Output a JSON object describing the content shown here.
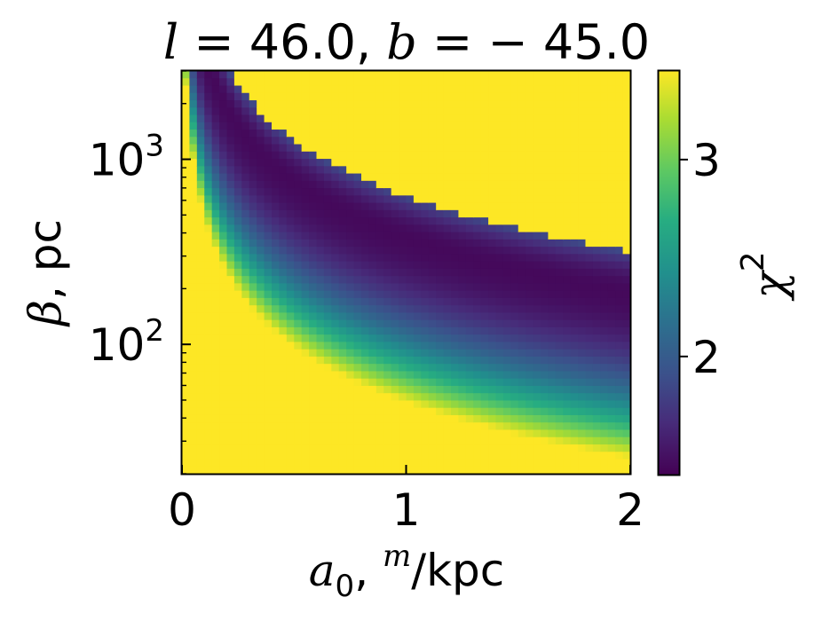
{
  "chart_data": {
    "type": "heatmap",
    "title": {
      "l_var": "l",
      "eq1": " = 46.0, ",
      "b_var": "b",
      "eq2": " = − 45.0"
    },
    "xlabel": {
      "a": "a",
      "sub": "0",
      "comma": ", ",
      "sup": "m",
      "unit": "/kpc"
    },
    "ylabel": {
      "beta": "β",
      "unit": ", pc"
    },
    "colorbar_label": {
      "chi": "χ",
      "sup": "2"
    },
    "xlim": [
      0,
      2
    ],
    "ylim_log": [
      20,
      3000
    ],
    "x_ticks": [
      {
        "value": 0,
        "label": "0"
      },
      {
        "value": 1,
        "label": "1"
      },
      {
        "value": 2,
        "label": "2"
      }
    ],
    "y_ticks": [
      {
        "value": 100,
        "base": "10",
        "exp": "2"
      },
      {
        "value": 1000,
        "base": "10",
        "exp": "3"
      }
    ],
    "colorbar": {
      "colormap": "viridis",
      "vmin": 1.4,
      "vmax": 3.45,
      "ticks": [
        {
          "value": 2,
          "label": "2"
        },
        {
          "value": 3,
          "label": "3"
        }
      ]
    },
    "grid": false
  }
}
